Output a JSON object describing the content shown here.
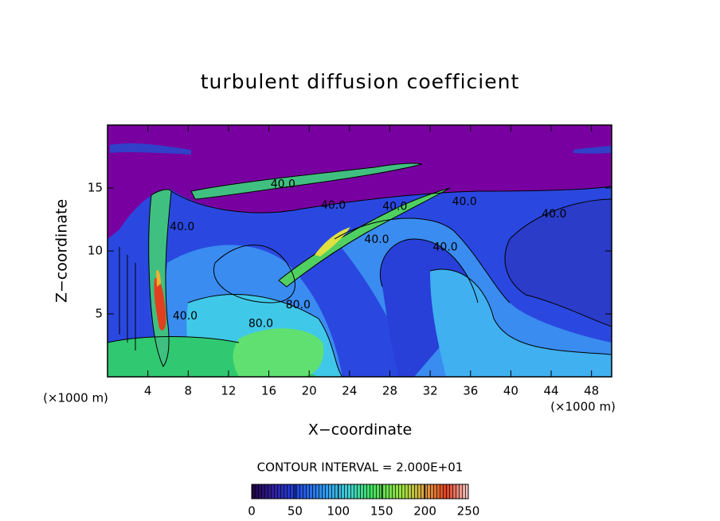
{
  "chart_data": {
    "type": "contour",
    "title": "turbulent diffusion coefficient",
    "xlabel": "X−coordinate",
    "ylabel": "Z−coordinate",
    "x_unit": "(×1000 m)",
    "y_unit": "(×1000 m)",
    "xlim": [
      0,
      50
    ],
    "ylim": [
      0,
      20
    ],
    "xticks": [
      4,
      8,
      12,
      16,
      20,
      24,
      28,
      32,
      36,
      40,
      44,
      48
    ],
    "yticks": [
      5,
      10,
      15
    ],
    "contour_interval_label": "CONTOUR INTERVAL = 2.000E+01",
    "contour_labels": [
      {
        "value": 40,
        "label": "40.0",
        "x": 17.4,
        "y": 15.3
      },
      {
        "value": 40,
        "label": "40.0",
        "x": 22.4,
        "y": 13.6
      },
      {
        "value": 40,
        "label": "40.0",
        "x": 28.5,
        "y": 13.5
      },
      {
        "value": 40,
        "label": "40.0",
        "x": 35.4,
        "y": 13.9
      },
      {
        "value": 40,
        "label": "40.0",
        "x": 44.3,
        "y": 12.9
      },
      {
        "value": 40,
        "label": "40.0",
        "x": 26.7,
        "y": 10.9
      },
      {
        "value": 40,
        "label": "40.0",
        "x": 33.5,
        "y": 10.3
      },
      {
        "value": 40,
        "label": "40.0",
        "x": 7.4,
        "y": 11.9
      },
      {
        "value": 40,
        "label": "40.0",
        "x": 7.7,
        "y": 4.8
      },
      {
        "value": 80,
        "label": "80.0",
        "x": 18.9,
        "y": 5.7
      },
      {
        "value": 80,
        "label": "80.0",
        "x": 15.2,
        "y": 4.2
      }
    ],
    "colorbar": {
      "lim": [
        0,
        250
      ],
      "ticks": [
        0,
        50,
        100,
        150,
        200,
        250
      ]
    }
  }
}
